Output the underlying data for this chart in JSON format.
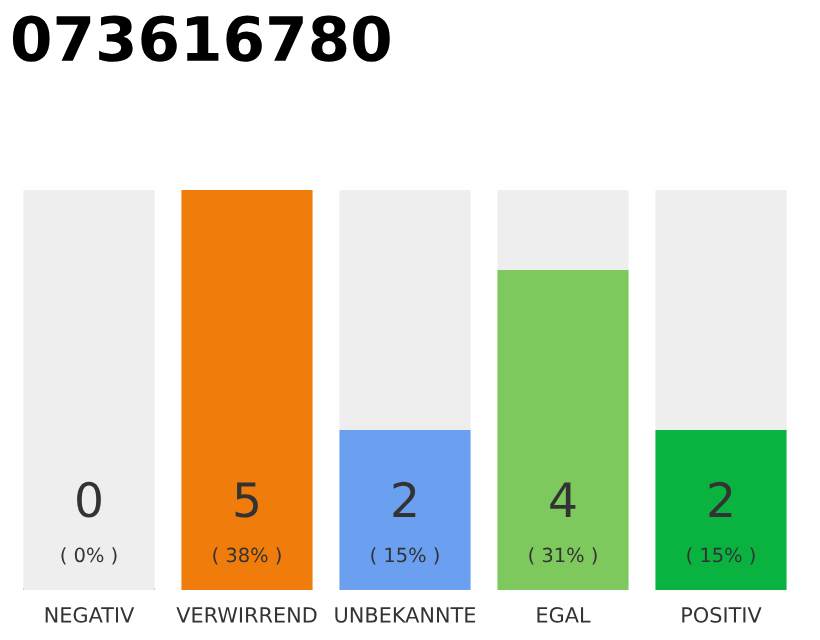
{
  "chart_data": {
    "type": "bar",
    "title": "073616780",
    "categories": [
      "NEGATIV",
      "VERWIRREND",
      "UNBEKANNTE",
      "EGAL",
      "POSITIV"
    ],
    "stacked": true,
    "ylim": [
      0,
      5
    ],
    "tick_labels": "x",
    "grid": false,
    "series": [
      {
        "colors": [
          "#333333",
          "#f07c0c",
          "#6aa0ef",
          "#7dc95e",
          "#0ab340"
        ],
        "values": [
          0,
          5,
          2,
          4,
          2
        ],
        "value_labels": [
          "0\n( 0% )",
          "5\n( 38% )",
          "2\n( 15% )",
          "4\n( 31% )",
          "2\n( 15% )"
        ]
      },
      {
        "color": "#eeeeee",
        "values": [
          5,
          0,
          3,
          1,
          3
        ]
      }
    ]
  }
}
